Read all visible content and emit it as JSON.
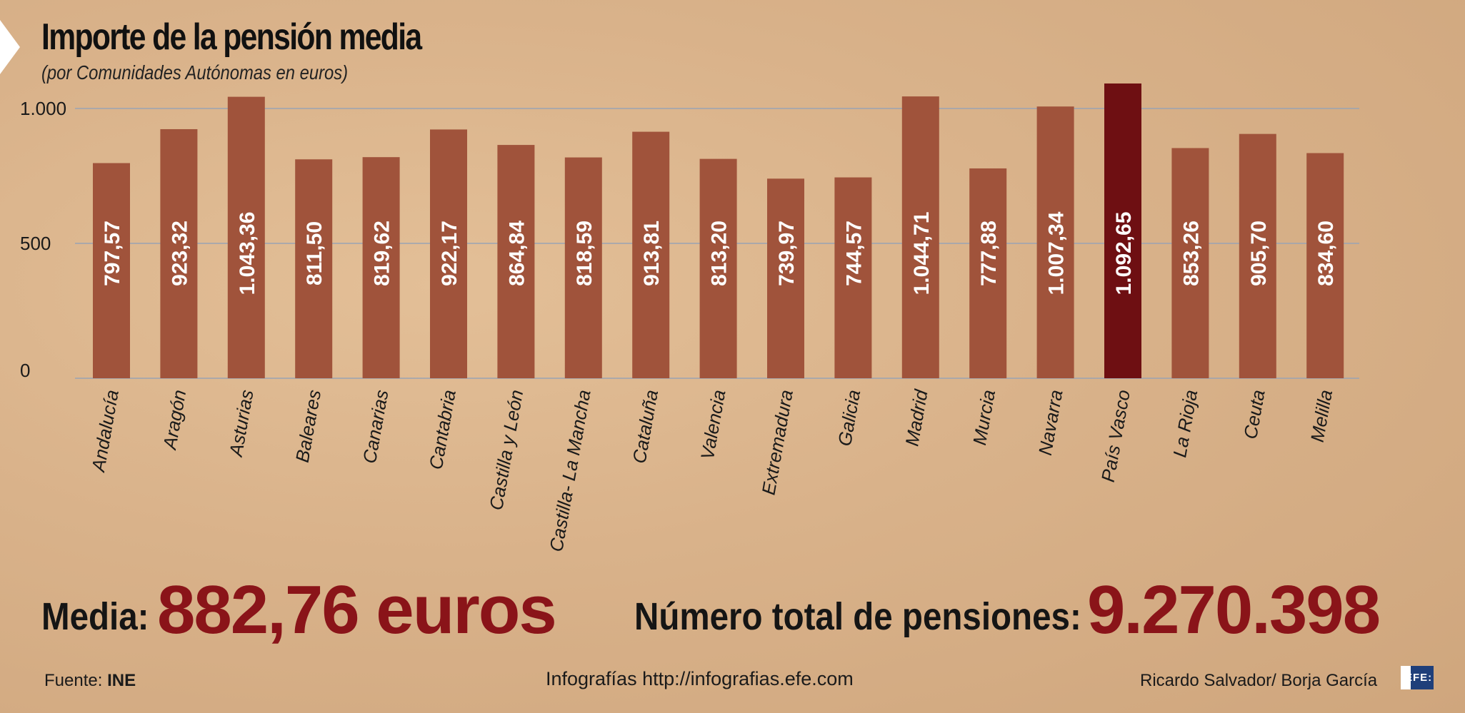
{
  "title": "Importe de la pensión media",
  "subtitle": "(por Comunidades Autónomas en euros)",
  "chart_data": {
    "type": "bar",
    "title": "Importe de la pensión media",
    "subtitle": "(por Comunidades Autónomas en euros)",
    "xlabel": "",
    "ylabel": "",
    "ylim": [
      0,
      1000
    ],
    "yticks": [
      0,
      500,
      1000
    ],
    "ytick_labels": [
      "0",
      "500",
      "1.000"
    ],
    "grid": true,
    "categories": [
      "Andalucía",
      "Aragón",
      "Asturias",
      "Baleares",
      "Canarias",
      "Cantabria",
      "Castilla y León",
      "Castilla- La Mancha",
      "Cataluña",
      "Valencia",
      "Extremadura",
      "Galicia",
      "Madrid",
      "Murcia",
      "Navarra",
      "País Vasco",
      "La Rioja",
      "Ceuta",
      "Melilla"
    ],
    "values": [
      797.57,
      923.32,
      1043.36,
      811.5,
      819.62,
      922.17,
      864.84,
      818.59,
      913.81,
      813.2,
      739.97,
      744.57,
      1044.71,
      777.88,
      1007.34,
      1092.65,
      853.26,
      905.7,
      834.6
    ],
    "value_labels": [
      "797,57",
      "923,32",
      "1.043,36",
      "811,50",
      "819,62",
      "922,17",
      "864,84",
      "818,59",
      "913,81",
      "813,20",
      "739,97",
      "744,57",
      "1.044,71",
      "777,88",
      "1.007,34",
      "1.092,65",
      "853,26",
      "905,70",
      "834,60"
    ],
    "highlight": "País Vasco",
    "colors": {
      "bar": "#a0533b",
      "highlight": "#6e0f12",
      "grid": "#9aa3b3"
    }
  },
  "summary": {
    "media_label": "Media:",
    "media_value": "882,76 euros",
    "total_label": "Número total de pensiones:",
    "total_value": "9.270.398"
  },
  "footer": {
    "source_label": "Fuente:",
    "source_value": "INE",
    "credit_site": "Infografías http://infografias.efe.com",
    "authors": "Ricardo Salvador/ Borja García",
    "logo": "EFE"
  }
}
